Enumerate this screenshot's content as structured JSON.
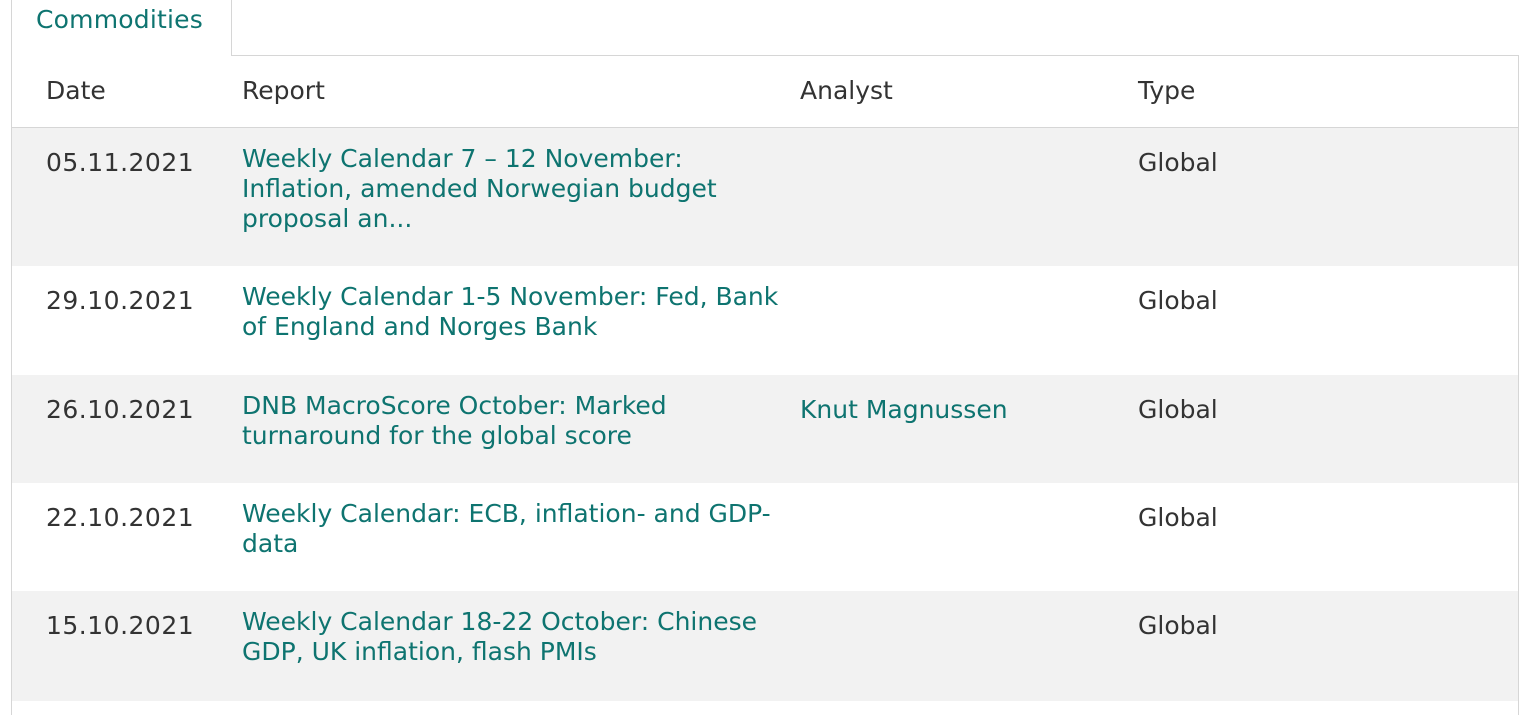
{
  "tab": {
    "label": "Commodities"
  },
  "table": {
    "headers": {
      "date": "Date",
      "report": "Report",
      "analyst": "Analyst",
      "type": "Type"
    },
    "rows": [
      {
        "date": "05.11.2021",
        "report": "Weekly Calendar 7 – 12 November: Inflation, amended Norwegian budget proposal an...",
        "analyst": "",
        "type": "Global"
      },
      {
        "date": "29.10.2021",
        "report": "Weekly Calendar 1-5 November: Fed, Bank of England and Norges Bank",
        "analyst": "",
        "type": "Global"
      },
      {
        "date": "26.10.2021",
        "report": "DNB MacroScore October: Marked turnaround for the global score",
        "analyst": "Knut Magnussen",
        "type": "Global"
      },
      {
        "date": "22.10.2021",
        "report": "Weekly Calendar: ECB, inflation- and GDP-data",
        "analyst": "",
        "type": "Global"
      },
      {
        "date": "15.10.2021",
        "report": "Weekly Calendar 18-22 October: Chinese GDP, UK inflation, flash PMIs",
        "analyst": "",
        "type": "Global"
      }
    ]
  },
  "colors": {
    "accent": "#0e7470",
    "text": "#333333",
    "row_shade": "#f2f2f2",
    "border": "#d6d6d6"
  }
}
